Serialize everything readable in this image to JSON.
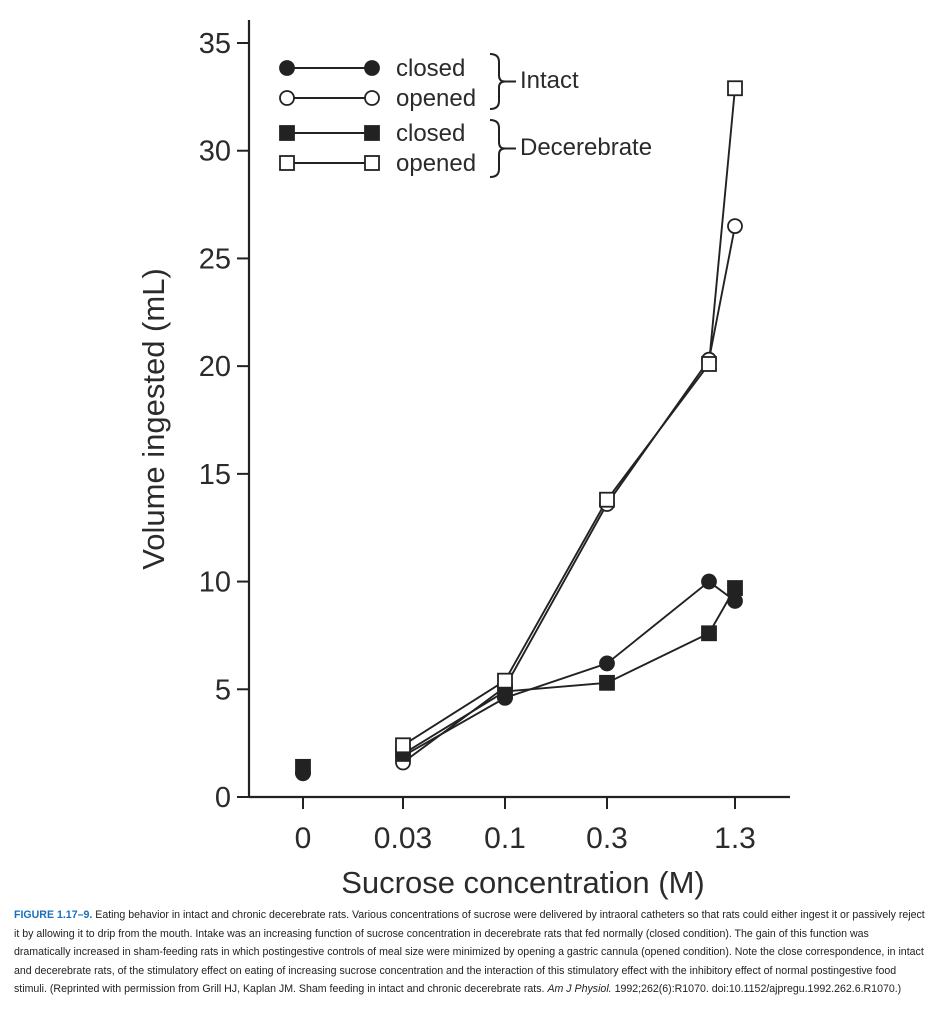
{
  "chart_data": {
    "type": "line",
    "xlabel": "Sucrose concentration (M)",
    "ylabel": "Volume ingested (mL)",
    "categories": [
      "0",
      "0.03",
      "0.1",
      "0.3",
      "1.3"
    ],
    "ylim": [
      0,
      35
    ],
    "yticks": [
      0,
      5,
      10,
      15,
      20,
      25,
      30,
      35
    ],
    "grid": false,
    "legend_position": "top-left",
    "legend": {
      "groups": [
        {
          "label": "Intact",
          "entries": [
            "closed",
            "opened"
          ]
        },
        {
          "label": "Decerebrate",
          "entries": [
            "closed",
            "opened"
          ]
        }
      ]
    },
    "series": [
      {
        "name": "closed",
        "group": "Intact",
        "marker": "circle-filled",
        "points": [
          {
            "x": "0",
            "y": 1.1
          },
          {
            "x": "0.03",
            "y": 1.9
          },
          {
            "x": "0.1",
            "y": 4.6
          },
          {
            "x": "0.3",
            "y": 6.2
          },
          {
            "x": "1.3",
            "y": 10.0
          },
          {
            "x": "1.3",
            "y": 9.1
          }
        ]
      },
      {
        "name": "opened",
        "group": "Intact",
        "marker": "circle-open",
        "points": [
          {
            "x": "0.03",
            "y": 1.6
          },
          {
            "x": "0.1",
            "y": 5.1
          },
          {
            "x": "0.3",
            "y": 13.6
          },
          {
            "x": "1.3",
            "y": 20.3
          },
          {
            "x": "1.3",
            "y": 26.5
          }
        ]
      },
      {
        "name": "closed",
        "group": "Decerebrate",
        "marker": "square-filled",
        "points": [
          {
            "x": "0",
            "y": 1.4
          },
          {
            "x": "0.03",
            "y": 2.0
          },
          {
            "x": "0.1",
            "y": 4.9
          },
          {
            "x": "0.3",
            "y": 5.3
          },
          {
            "x": "1.3",
            "y": 7.6
          },
          {
            "x": "1.3",
            "y": 9.7
          }
        ]
      },
      {
        "name": "opened",
        "group": "Decerebrate",
        "marker": "square-open",
        "points": [
          {
            "x": "0.03",
            "y": 2.4
          },
          {
            "x": "0.1",
            "y": 5.4
          },
          {
            "x": "0.3",
            "y": 13.8
          },
          {
            "x": "1.3",
            "y": 20.1
          },
          {
            "x": "1.3",
            "y": 32.9
          }
        ]
      }
    ]
  },
  "caption": {
    "label": "FIGURE 1.17–9.",
    "text": " Eating behavior in intact and chronic decerebrate rats. Various concentrations of sucrose were delivered by intraoral catheters so that rats could either ingest it or passively reject it by allowing it to drip from the mouth. Intake was an increasing function of sucrose concentration in decerebrate rats that fed normally (closed condition). The gain of this function was dramatically increased in sham-feeding rats in which postingestive controls of meal size were minimized by opening a gastric cannula (opened condition). Note the close correspondence, in intact and decerebrate rats, of the stimulatory effect on eating of increasing sucrose concentration and the interaction of this stimulatory effect with the inhibitory effect of normal postingestive food stimuli. (Reprinted with permission from Grill HJ, Kaplan JM. Sham feeding in intact and chronic decerebrate rats. ",
    "journal": "Am J Physiol.",
    "tail": " 1992;262(6):R1070. doi:10.1152/ajpregu.1992.262.6.R1070.)"
  }
}
